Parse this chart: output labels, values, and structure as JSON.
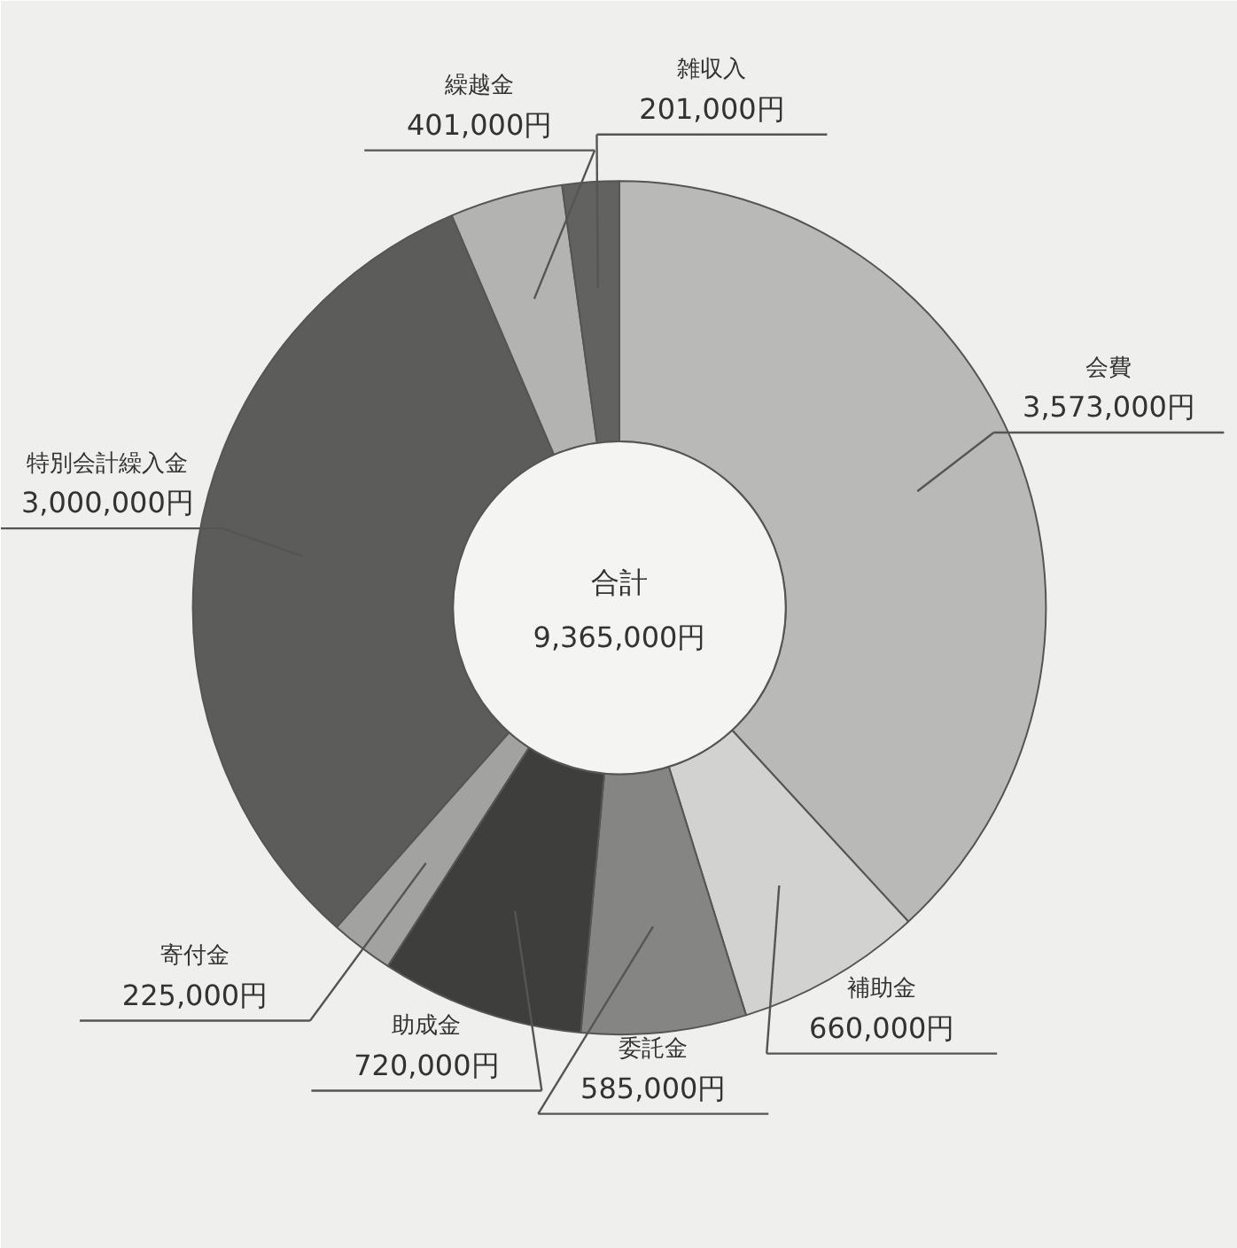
{
  "chart_data": {
    "type": "donut",
    "categories": [
      "会費",
      "補助金",
      "委託金",
      "助成金",
      "寄付金",
      "特別会計繰入金",
      "繰越金",
      "雑収入"
    ],
    "values": [
      3573000,
      660000,
      585000,
      720000,
      225000,
      3000000,
      401000,
      201000
    ],
    "value_labels": [
      "3,573,000円",
      "660,000円",
      "585,000円",
      "720,000円",
      "225,000円",
      "3,000,000円",
      "401,000円",
      "201,000円"
    ],
    "colors": [
      "#b9b9b7",
      "#d2d2d0",
      "#858583",
      "#3e3f3d",
      "#a2a2a0",
      "#5c5d5b",
      "#b3b3b1",
      "#626361"
    ],
    "annotations": [
      "合計",
      "9,365,000円"
    ]
  }
}
